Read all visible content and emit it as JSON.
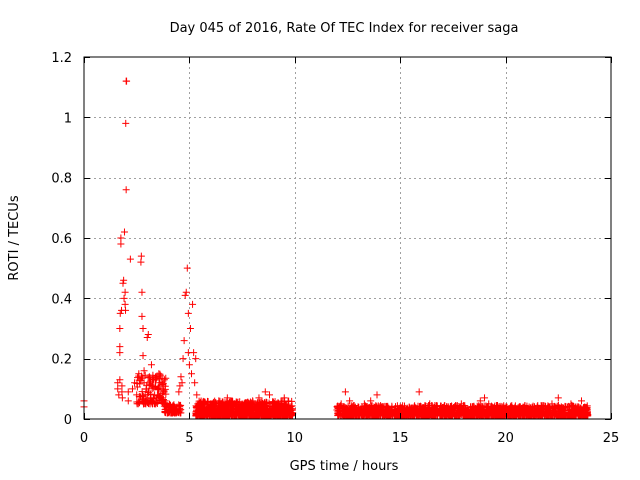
{
  "chart_data": {
    "type": "scatter",
    "title": "Day 045 of 2016, Rate Of TEC Index for receiver saga",
    "xlabel": "GPS time / hours",
    "ylabel": "ROTI / TECUs",
    "xlim": [
      0,
      25
    ],
    "ylim": [
      0,
      1.2
    ],
    "xticks": [
      0,
      5,
      10,
      15,
      20,
      25
    ],
    "xtick_labels": [
      "0",
      "5",
      "10",
      "15",
      "20",
      "25"
    ],
    "yticks": [
      0,
      0.2,
      0.4,
      0.6,
      0.8,
      1.0,
      1.2
    ],
    "ytick_labels": [
      "0",
      "0.2",
      "0.4",
      "0.6",
      "0.8",
      "1",
      "1.2"
    ],
    "grid": true,
    "marker": "+",
    "color": "#ff0000",
    "series": [
      {
        "name": "ROTI",
        "points": [
          [
            0.0,
            0.06
          ],
          [
            0.0,
            0.04
          ],
          [
            1.6,
            0.12
          ],
          [
            1.6,
            0.1
          ],
          [
            1.65,
            0.08
          ],
          [
            1.7,
            0.13
          ],
          [
            1.7,
            0.24
          ],
          [
            1.7,
            0.22
          ],
          [
            1.7,
            0.3
          ],
          [
            1.72,
            0.35
          ],
          [
            1.75,
            0.58
          ],
          [
            1.75,
            0.6
          ],
          [
            1.78,
            0.36
          ],
          [
            1.8,
            0.11
          ],
          [
            1.8,
            0.09
          ],
          [
            1.82,
            0.07
          ],
          [
            1.85,
            0.45
          ],
          [
            1.88,
            0.46
          ],
          [
            1.9,
            0.4
          ],
          [
            1.92,
            0.62
          ],
          [
            1.95,
            0.38
          ],
          [
            1.95,
            0.42
          ],
          [
            1.97,
            0.36
          ],
          [
            2.0,
            1.12
          ],
          [
            2.02,
            1.12
          ],
          [
            1.98,
            0.98
          ],
          [
            2.0,
            0.76
          ],
          [
            2.1,
            0.09
          ],
          [
            2.2,
            0.53
          ],
          [
            2.1,
            0.06
          ],
          [
            2.3,
            0.1
          ],
          [
            2.4,
            0.12
          ],
          [
            2.5,
            0.08
          ],
          [
            2.6,
            0.15
          ],
          [
            2.7,
            0.52
          ],
          [
            2.72,
            0.54
          ],
          [
            2.75,
            0.42
          ],
          [
            2.75,
            0.34
          ],
          [
            2.8,
            0.3
          ],
          [
            2.8,
            0.21
          ],
          [
            2.85,
            0.16
          ],
          [
            2.85,
            0.12
          ],
          [
            2.9,
            0.08
          ],
          [
            2.95,
            0.1
          ],
          [
            3.0,
            0.27
          ],
          [
            3.05,
            0.28
          ],
          [
            3.1,
            0.14
          ],
          [
            3.1,
            0.12
          ],
          [
            3.2,
            0.18
          ],
          [
            3.25,
            0.11
          ],
          [
            3.3,
            0.13
          ],
          [
            3.35,
            0.08
          ],
          [
            3.4,
            0.05
          ],
          [
            3.45,
            0.07
          ],
          [
            3.5,
            0.1
          ],
          [
            3.55,
            0.15
          ],
          [
            3.6,
            0.12
          ],
          [
            3.7,
            0.07
          ],
          [
            3.75,
            0.11
          ],
          [
            3.8,
            0.09
          ],
          [
            3.85,
            0.06
          ],
          [
            3.9,
            0.04
          ],
          [
            4.0,
            0.04
          ],
          [
            4.1,
            0.03
          ],
          [
            4.2,
            0.02
          ],
          [
            4.3,
            0.04
          ],
          [
            4.4,
            0.03
          ],
          [
            4.5,
            0.09
          ],
          [
            4.55,
            0.11
          ],
          [
            4.6,
            0.14
          ],
          [
            4.65,
            0.12
          ],
          [
            4.7,
            0.2
          ],
          [
            4.75,
            0.26
          ],
          [
            4.8,
            0.41
          ],
          [
            4.85,
            0.42
          ],
          [
            4.9,
            0.5
          ],
          [
            4.95,
            0.35
          ],
          [
            4.95,
            0.22
          ],
          [
            5.0,
            0.18
          ],
          [
            5.05,
            0.3
          ],
          [
            5.1,
            0.15
          ],
          [
            5.15,
            0.38
          ],
          [
            5.2,
            0.22
          ],
          [
            5.25,
            0.12
          ],
          [
            5.3,
            0.2
          ],
          [
            5.35,
            0.08
          ],
          [
            5.4,
            0.05
          ],
          [
            5.5,
            0.03
          ],
          [
            5.6,
            0.04
          ],
          [
            5.8,
            0.02
          ],
          [
            6.0,
            0.03
          ],
          [
            6.2,
            0.04
          ],
          [
            6.4,
            0.02
          ],
          [
            6.6,
            0.05
          ],
          [
            6.8,
            0.07
          ],
          [
            7.0,
            0.03
          ],
          [
            7.2,
            0.02
          ],
          [
            7.5,
            0.05
          ],
          [
            7.8,
            0.04
          ],
          [
            8.0,
            0.06
          ],
          [
            8.3,
            0.07
          ],
          [
            8.6,
            0.09
          ],
          [
            8.8,
            0.08
          ],
          [
            9.0,
            0.05
          ],
          [
            9.3,
            0.03
          ],
          [
            9.5,
            0.07
          ],
          [
            9.7,
            0.04
          ],
          [
            9.9,
            0.02
          ],
          [
            12.0,
            0.03
          ],
          [
            12.2,
            0.05
          ],
          [
            12.4,
            0.09
          ],
          [
            12.6,
            0.06
          ],
          [
            12.8,
            0.02
          ],
          [
            13.0,
            0.04
          ],
          [
            13.3,
            0.05
          ],
          [
            13.6,
            0.06
          ],
          [
            13.9,
            0.08
          ],
          [
            14.2,
            0.04
          ],
          [
            14.5,
            0.03
          ],
          [
            14.8,
            0.02
          ],
          [
            15.0,
            0.04
          ],
          [
            15.3,
            0.03
          ],
          [
            15.6,
            0.02
          ],
          [
            15.9,
            0.09
          ],
          [
            16.1,
            0.03
          ],
          [
            16.4,
            0.05
          ],
          [
            16.7,
            0.02
          ],
          [
            17.0,
            0.03
          ],
          [
            17.3,
            0.04
          ],
          [
            17.6,
            0.02
          ],
          [
            17.9,
            0.05
          ],
          [
            18.2,
            0.03
          ],
          [
            18.5,
            0.04
          ],
          [
            18.8,
            0.06
          ],
          [
            19.0,
            0.07
          ],
          [
            19.2,
            0.05
          ],
          [
            19.5,
            0.03
          ],
          [
            19.8,
            0.02
          ],
          [
            20.1,
            0.03
          ],
          [
            20.4,
            0.02
          ],
          [
            20.7,
            0.04
          ],
          [
            21.0,
            0.02
          ],
          [
            21.3,
            0.03
          ],
          [
            21.6,
            0.02
          ],
          [
            21.9,
            0.04
          ],
          [
            22.2,
            0.05
          ],
          [
            22.5,
            0.07
          ],
          [
            22.8,
            0.03
          ],
          [
            23.1,
            0.05
          ],
          [
            23.4,
            0.04
          ],
          [
            23.6,
            0.06
          ],
          [
            23.8,
            0.02
          ]
        ],
        "dense_bands": [
          {
            "x_range": [
              5.3,
              9.9
            ],
            "y_range": [
              0.01,
              0.06
            ],
            "count": 1000
          },
          {
            "x_range": [
              12.0,
              23.9
            ],
            "y_range": [
              0.01,
              0.045
            ],
            "count": 1800
          },
          {
            "x_range": [
              3.8,
              4.6
            ],
            "y_range": [
              0.02,
              0.05
            ],
            "count": 80
          },
          {
            "x_range": [
              2.5,
              3.9
            ],
            "y_range": [
              0.05,
              0.15
            ],
            "count": 120
          }
        ]
      }
    ]
  }
}
